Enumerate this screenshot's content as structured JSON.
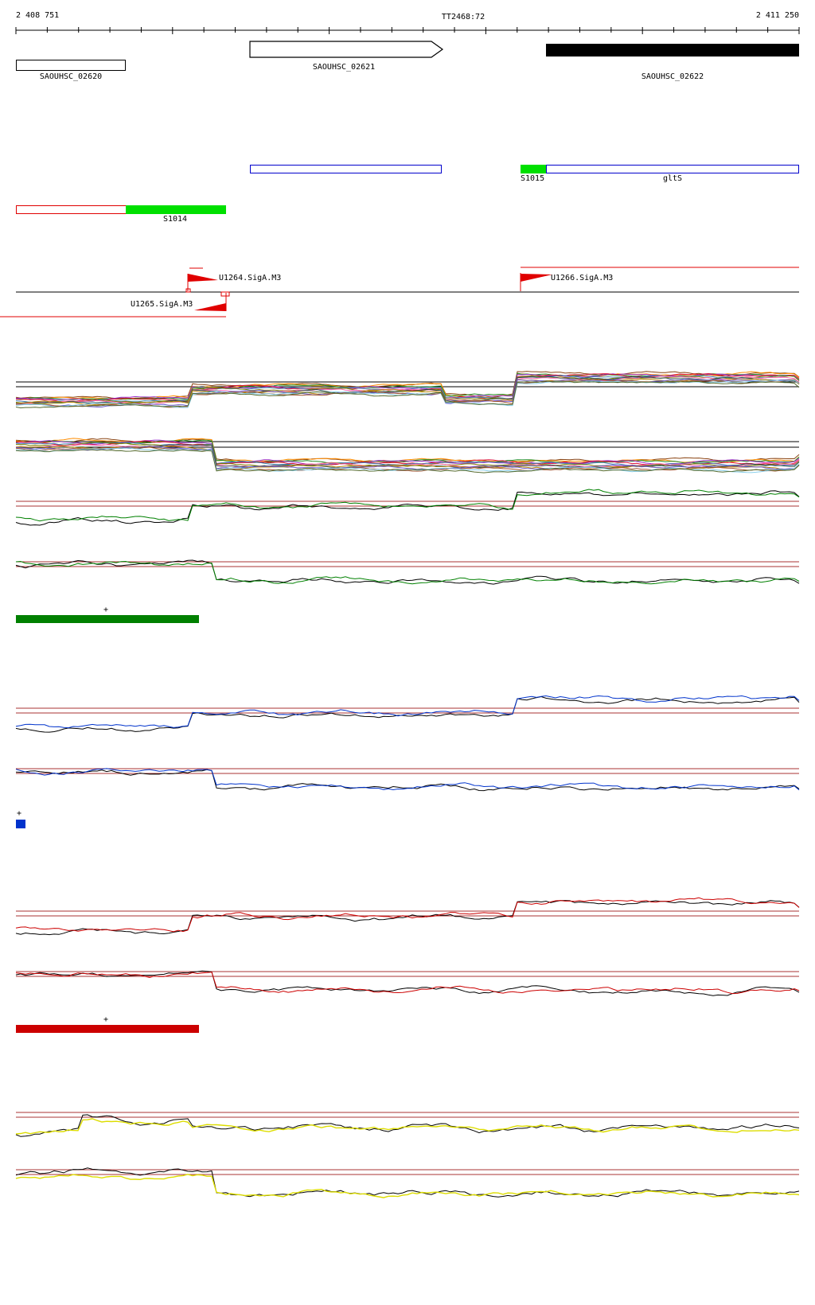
{
  "coordinates": {
    "start": "2 408 751",
    "end": "2 411 250",
    "marker": "TT2468:72"
  },
  "genes": [
    {
      "name": "SAOUHSC_02620",
      "style": "outline"
    },
    {
      "name": "SAOUHSC_02621",
      "style": "arrow"
    },
    {
      "name": "SAOUHSC_02622",
      "style": "filled"
    }
  ],
  "segments": [
    {
      "name": "S1014",
      "color": "#00e000"
    },
    {
      "name": "S1015",
      "color": "#00e000"
    },
    {
      "name": "gltS",
      "color": "#0000cc"
    }
  ],
  "promoters": [
    {
      "name": "U1264.SigA.M3",
      "strand": "+"
    },
    {
      "name": "U1265.SigA.M3",
      "strand": "-"
    },
    {
      "name": "U1266.SigA.M3",
      "strand": "+"
    }
  ],
  "condition_groups": [
    {
      "color": "#008000",
      "marker": "+"
    },
    {
      "color": "#0033cc",
      "marker": "+"
    },
    {
      "color": "#cc0000",
      "marker": "+"
    },
    {
      "color": "#dddd00",
      "marker": ""
    }
  ]
}
